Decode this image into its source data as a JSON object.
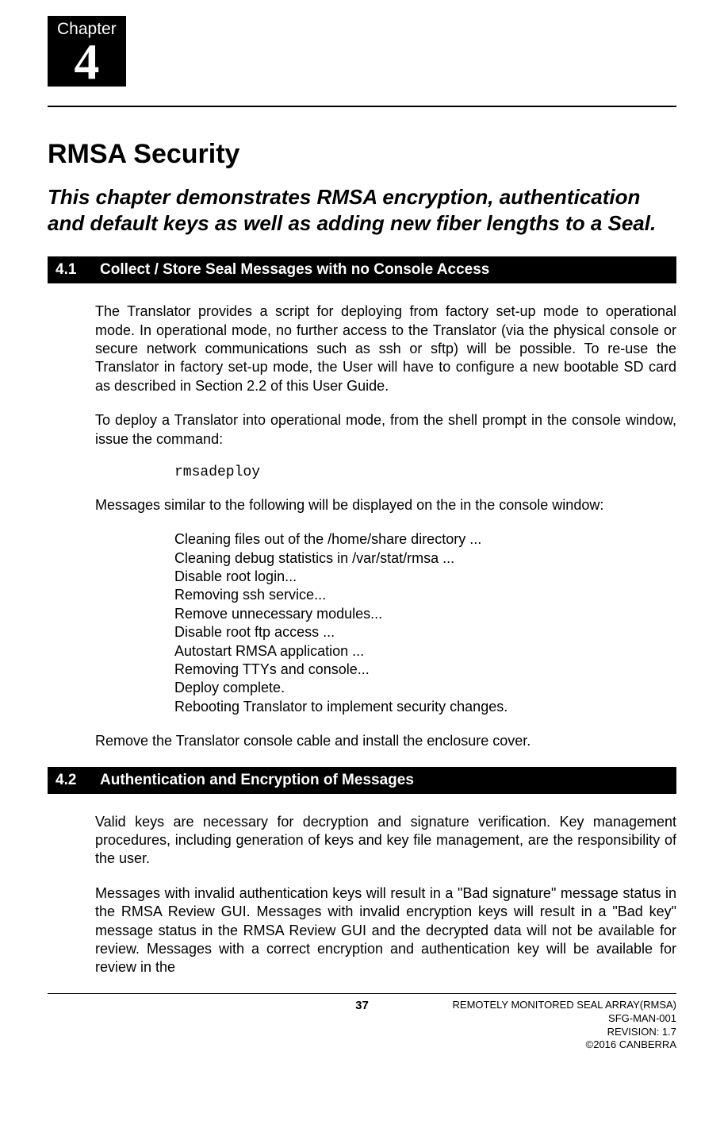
{
  "chapter": {
    "label": "Chapter",
    "number": "4"
  },
  "heading": {
    "title": "RMSA Security",
    "subtitle": "This chapter demonstrates RMSA encryption, authentication and default keys as well as adding new fiber lengths to a Seal."
  },
  "section41": {
    "number": "4.1",
    "title": "Collect / Store Seal Messages with no Console Access",
    "p1": "The Translator provides a script for deploying from factory set-up mode to operational mode. In operational mode, no further access to the Translator (via the physical console or secure network communications such as ssh or sftp) will be possible. To re-use the Translator in factory set-up mode, the User will have to configure a new bootable SD card as described in Section 2.2 of this User Guide.",
    "p2": "To deploy a Translator into operational mode, from the shell prompt in the console window, issue the command:",
    "cmd": "rmsadeploy",
    "p3": "Messages similar to the following will be displayed on the in the console window:",
    "output": "Cleaning files out of the /home/share directory ...\nCleaning debug statistics in /var/stat/rmsa ...\nDisable root login...\nRemoving ssh service...\nRemove unnecessary modules...\nDisable root ftp access ...\nAutostart RMSA application ...\nRemoving TTYs and console...\nDeploy complete.\nRebooting Translator to implement security changes.",
    "p4": "Remove the Translator console cable and install the enclosure cover."
  },
  "section42": {
    "number": "4.2",
    "title": "Authentication and Encryption of Messages",
    "p1": "Valid keys are necessary for decryption and signature verification.  Key management procedures, including generation of keys and key file management, are the responsibility of the user.",
    "p2": "Messages with invalid authentication keys will result in a \"Bad signature\" message status in the RMSA Review GUI.  Messages with invalid encryption keys will result in a \"Bad key\" message status in the RMSA Review GUI and the decrypted data will not be available for review. Messages with a correct encryption and authentication key will be available for review in the"
  },
  "footer": {
    "page": "37",
    "line1": "REMOTELY MONITORED SEAL ARRAY(RMSA)",
    "line2": "SFG-MAN-001",
    "line3": "REVISION: 1.7",
    "line4": "©2016 CANBERRA"
  }
}
